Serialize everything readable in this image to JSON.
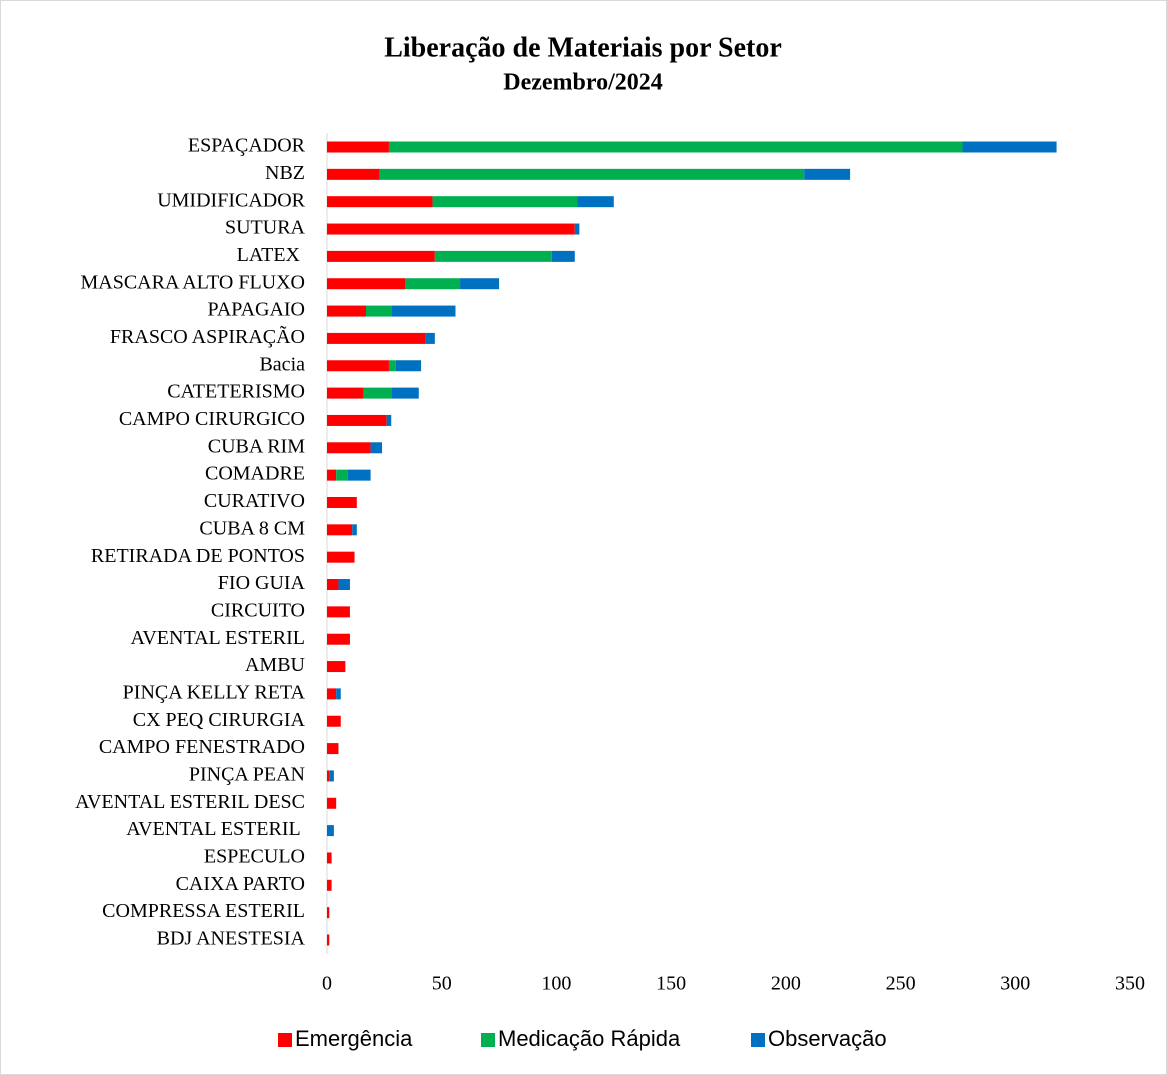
{
  "chart_data": {
    "type": "bar",
    "orientation": "horizontal",
    "stacked": true,
    "title": "Liberação de Materiais por Setor",
    "subtitle": "Dezembro/2024",
    "categories": [
      "ESPAÇADOR",
      "NBZ",
      "UMIDIFICADOR",
      "SUTURA",
      "LATEX ",
      "MASCARA ALTO FLUXO",
      "PAPAGAIO",
      "FRASCO ASPIRAÇÃO",
      "Bacia",
      "CATETERISMO",
      "CAMPO CIRURGICO",
      "CUBA RIM",
      "COMADRE",
      "CURATIVO",
      "CUBA 8 CM",
      "RETIRADA DE PONTOS",
      "FIO GUIA",
      "CIRCUITO",
      "AVENTAL ESTERIL",
      "AMBU",
      "PINÇA KELLY RETA",
      "CX PEQ CIRURGIA",
      "CAMPO FENESTRADO",
      "PINÇA PEAN",
      "AVENTAL ESTERIL DESC",
      "AVENTAL ESTERIL ",
      "ESPECULO",
      "CAIXA PARTO",
      "COMPRESSA ESTERIL",
      "BDJ ANESTESIA"
    ],
    "series": [
      {
        "name": "Emergência",
        "color": "#ff0000",
        "values": [
          27,
          23,
          46,
          108,
          47,
          34,
          17,
          43,
          27,
          16,
          26,
          19,
          4,
          13,
          11,
          12,
          5,
          10,
          10,
          8,
          4,
          6,
          5,
          1,
          4,
          0,
          2,
          2,
          1,
          1
        ]
      },
      {
        "name": "Medicação Rápida",
        "color": "#00b050",
        "values": [
          250,
          185,
          63,
          0,
          51,
          24,
          11,
          0,
          3,
          12,
          0,
          0,
          5,
          0,
          0,
          0,
          0,
          0,
          0,
          0,
          0,
          0,
          0,
          0,
          0,
          0,
          0,
          0,
          0,
          0
        ]
      },
      {
        "name": "Observação",
        "color": "#0070c0",
        "values": [
          41,
          20,
          16,
          2,
          10,
          17,
          28,
          4,
          11,
          12,
          2,
          5,
          10,
          0,
          2,
          0,
          5,
          0,
          0,
          0,
          2,
          0,
          0,
          2,
          0,
          3,
          0,
          0,
          0,
          0
        ]
      }
    ],
    "xlim": [
      0,
      350
    ],
    "xticks": [
      0,
      50,
      100,
      150,
      200,
      250,
      300,
      350
    ],
    "grid": false,
    "legend": "bottom"
  }
}
